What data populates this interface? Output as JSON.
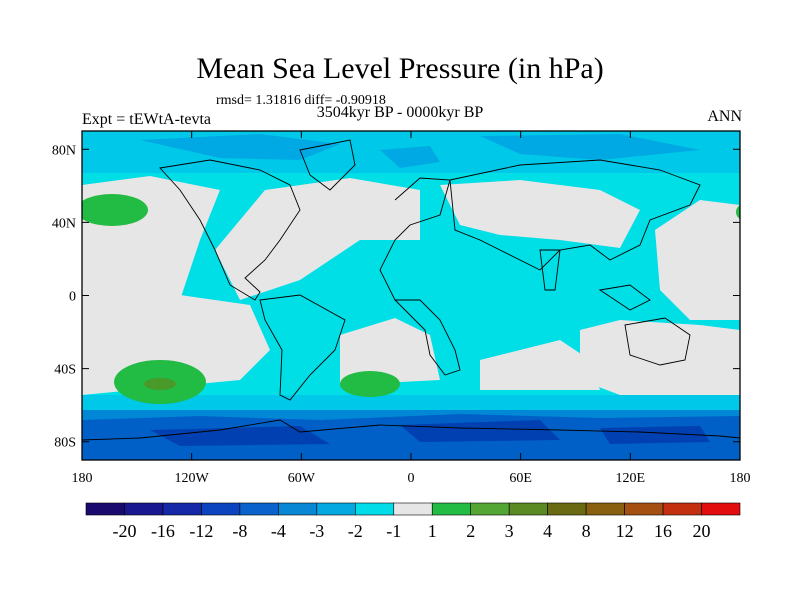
{
  "header": {
    "title": "Mean Sea Level Pressure (in hPa)",
    "stats": "rmsd= 1.31816 diff= -0.90918",
    "experiment": "Expt = tEWtA-tevta",
    "period": "3504kyr BP - 0000kyr BP",
    "season": "ANN"
  },
  "map": {
    "projection": "cylindrical equidistant",
    "lon_range": [
      -180,
      180
    ],
    "lat_range": [
      -90,
      90
    ],
    "x_ticks": [
      {
        "value": -180,
        "label": "180"
      },
      {
        "value": -120,
        "label": "120W"
      },
      {
        "value": -60,
        "label": "60W"
      },
      {
        "value": 0,
        "label": "0"
      },
      {
        "value": 60,
        "label": "60E"
      },
      {
        "value": 120,
        "label": "120E"
      },
      {
        "value": 180,
        "label": "180"
      }
    ],
    "y_ticks": [
      {
        "value": 80,
        "label": "80N"
      },
      {
        "value": 40,
        "label": "40N"
      },
      {
        "value": 0,
        "label": "0"
      },
      {
        "value": -40,
        "label": "40S"
      },
      {
        "value": -80,
        "label": "80S"
      }
    ],
    "colors": {
      "neutral": "#e6e6e6",
      "lvl_m1": "#00dee6",
      "lvl_m2": "#00c8e8",
      "lvl_m3": "#00a8e4",
      "lvl_m4": "#0088d6",
      "lvl_m8": "#0060c8",
      "lvl_m12": "#0040b0",
      "pos1": "#22bb44",
      "pos2": "#4a9a2a",
      "coast": "#000000"
    }
  },
  "colorbar": {
    "colors": [
      "#1a0a6e",
      "#1a1890",
      "#1528a8",
      "#0c44c0",
      "#0a62cc",
      "#0888d4",
      "#06a8e2",
      "#00dce8",
      "#e6e6e6",
      "#22bb44",
      "#54a634",
      "#5c8a22",
      "#6a6a12",
      "#886010",
      "#a45010",
      "#c23010",
      "#e20e0e"
    ],
    "labels": [
      "-20",
      "-16",
      "-12",
      "-8",
      "-4",
      "-3",
      "-2",
      "-1",
      "1",
      "2",
      "3",
      "4",
      "8",
      "12",
      "16",
      "20"
    ]
  }
}
